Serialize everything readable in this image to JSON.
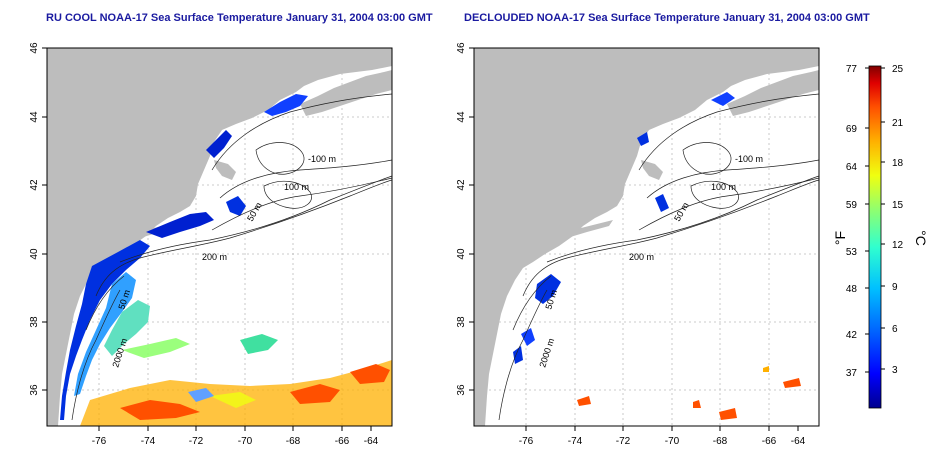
{
  "panels": [
    {
      "title": "RU COOL NOAA-17 Sea Surface Temperature January 31, 2004 03:00 GMT",
      "x_ticks": [
        "-76",
        "-74",
        "-72",
        "-70",
        "-68",
        "-66",
        "-64"
      ],
      "y_ticks": [
        "36",
        "38",
        "40",
        "42",
        "44",
        "46"
      ],
      "contour_labels": [
        "-100 m",
        "100 m",
        "50 m",
        "200 m",
        "2000 m",
        "50 m"
      ],
      "clouded": true
    },
    {
      "title": "DECLOUDED NOAA-17 Sea Surface Temperature January 31, 2004 03:00 GMT",
      "x_ticks": [
        "-76",
        "-74",
        "-72",
        "-70",
        "-68",
        "-66",
        "-64"
      ],
      "y_ticks": [
        "36",
        "38",
        "40",
        "42",
        "44",
        "46"
      ],
      "contour_labels": [
        "-100 m",
        "100 m",
        "50 m",
        "200 m",
        "2000 m",
        "50 m"
      ],
      "clouded": false
    }
  ],
  "colorbar": {
    "f_label": "°F",
    "c_label": "°C",
    "f_ticks": [
      "77",
      "69",
      "64",
      "59",
      "53",
      "48",
      "42",
      "37"
    ],
    "c_ticks": [
      "25",
      "21",
      "18",
      "15",
      "12",
      "9",
      "6",
      "3"
    ],
    "colors": [
      "#00008f",
      "#0000ff",
      "#0060ff",
      "#00c0ff",
      "#30ffcf",
      "#90ff6f",
      "#f0ff10",
      "#ffb000",
      "#ff5000",
      "#df0000",
      "#800000"
    ]
  },
  "colors": {
    "land": "#bdbdbd",
    "title": "#1a1aa0",
    "grid": "#bbbbbb"
  }
}
